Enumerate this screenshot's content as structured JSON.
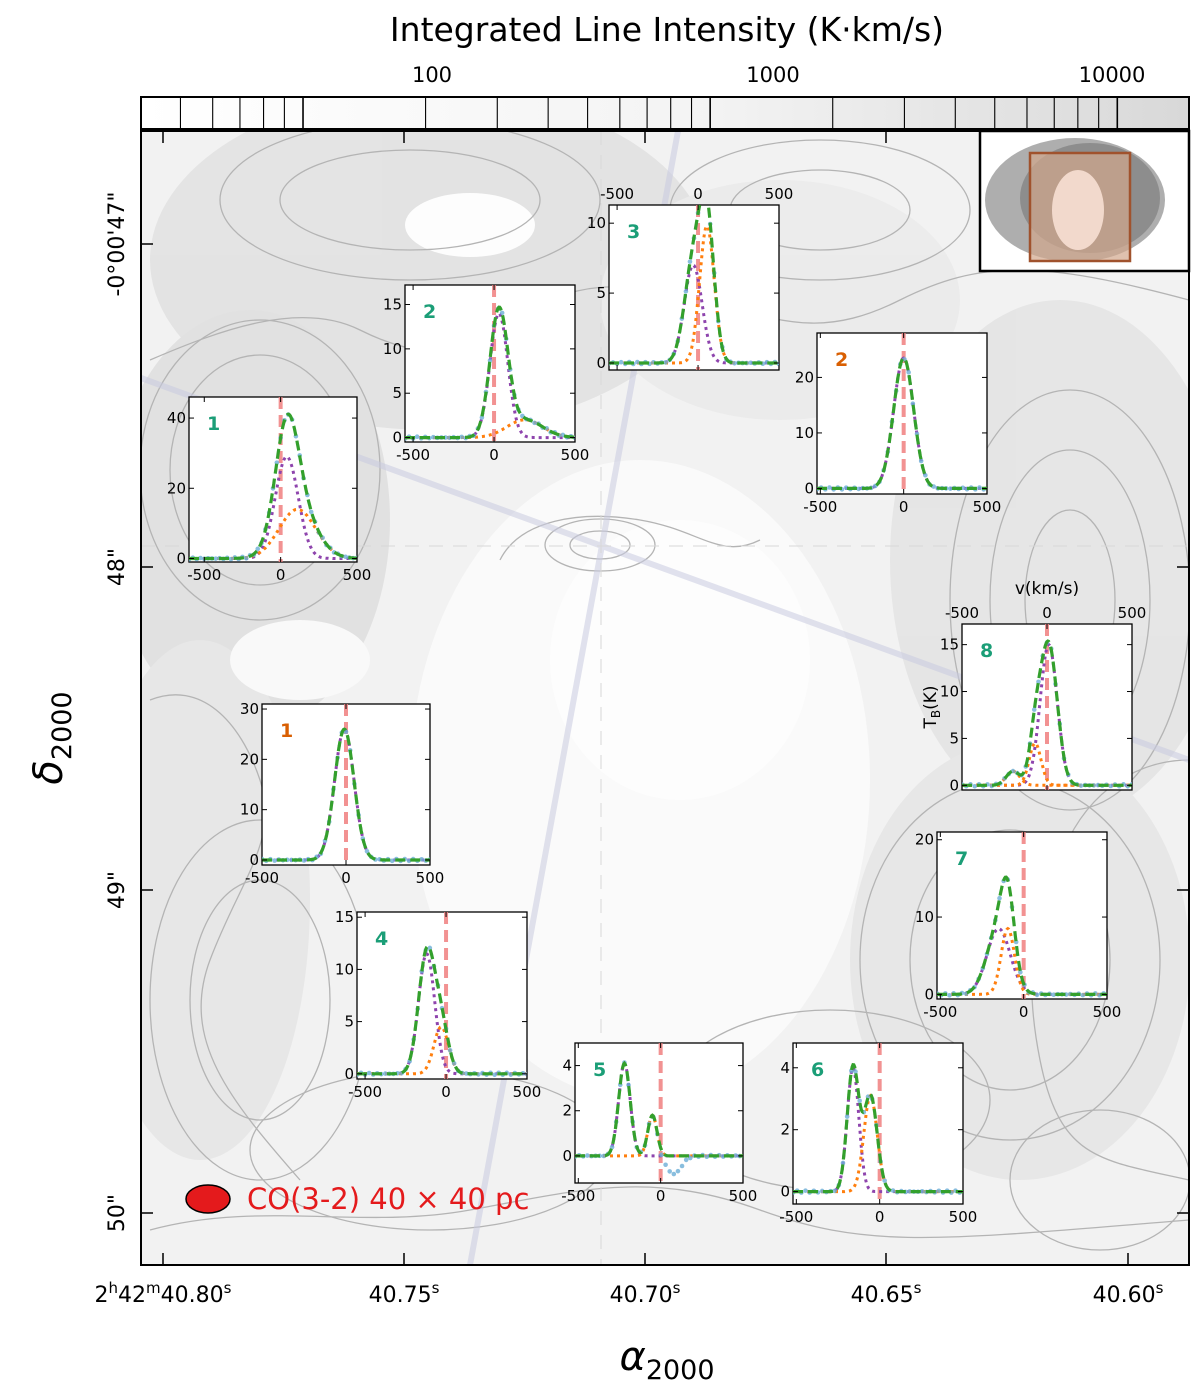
{
  "figure": {
    "colorbar": {
      "label": "Integrated Line Intensity (K·km/s)",
      "scale": "log",
      "range": [
        40,
        15000
      ],
      "tick_labels": [
        "100",
        "1000",
        "10000"
      ],
      "tick_values": [
        100,
        1000,
        10000
      ]
    },
    "map": {
      "x_axis": {
        "label_main": "α",
        "label_sub": "2000",
        "tick_labels": [
          {
            "h": "2",
            "m": "42",
            "s": "40.80",
            "unit": "s"
          },
          {
            "s": "40.75",
            "unit": "s"
          },
          {
            "s": "40.70",
            "unit": "s"
          },
          {
            "s": "40.65",
            "unit": "s"
          },
          {
            "s": "40.60",
            "unit": "s"
          }
        ]
      },
      "y_axis": {
        "label_main": "δ",
        "label_sub": "2000",
        "tick_labels": [
          "-0°00'47\"",
          "48\"",
          "49\"",
          "50\""
        ]
      },
      "beam_label": "CO(3-2) 40 × 40 pc",
      "background": "grayscale integrated intensity map with gray contours"
    },
    "colors": {
      "green_label": "#1b9e77",
      "orange_label": "#d95f02",
      "model_total": "#33a02c",
      "component_a": "#8e44ad",
      "component_b": "#ff7f0e",
      "data_points": "#6baed6",
      "systemic_line": "#f08080",
      "beam": "#e41a1c",
      "inset_box": "#a0522d"
    }
  },
  "chart_data": [
    {
      "type": "line",
      "id": "green-1",
      "label": "1",
      "label_color": "green",
      "x_ticks": [
        -500,
        0,
        500
      ],
      "y_ticks": [
        0,
        20,
        40
      ],
      "xlim": [
        -600,
        500
      ],
      "ylim": [
        -1,
        46
      ],
      "components": [
        {
          "name": "",
          "amp": 29,
          "mu": 40,
          "sigma": 75
        },
        {
          "name": "",
          "amp": 14,
          "mu": 110,
          "sigma": 120
        }
      ],
      "peak": 41.5
    },
    {
      "type": "line",
      "id": "green-2",
      "label": "2",
      "label_color": "green",
      "x_ticks": [
        -500,
        0,
        500
      ],
      "y_ticks": [
        0,
        5,
        10,
        15
      ],
      "xlim": [
        -550,
        500
      ],
      "ylim": [
        -0.5,
        17.2
      ],
      "components": [
        {
          "name": "",
          "amp": 14,
          "mu": 30,
          "sigma": 55
        },
        {
          "name": "",
          "amp": 2,
          "mu": 190,
          "sigma": 110
        }
      ],
      "peak": 16
    },
    {
      "type": "line",
      "id": "green-3",
      "label": "3",
      "label_color": "green",
      "x_ticks": [
        -500,
        0,
        500
      ],
      "y_ticks": [
        0,
        5,
        10
      ],
      "xlim": [
        -550,
        500
      ],
      "ylim": [
        -0.5,
        11.3
      ],
      "x_ticks_position": "top",
      "components": [
        {
          "name": "",
          "amp": 7,
          "mu": -30,
          "sigma": 55
        },
        {
          "name": "",
          "amp": 9.8,
          "mu": 55,
          "sigma": 45
        }
      ],
      "peak": 10.3
    },
    {
      "type": "line",
      "id": "orange-2",
      "label": "2",
      "label_color": "orange",
      "x_ticks": [
        -500,
        0,
        500
      ],
      "y_ticks": [
        0,
        10,
        20
      ],
      "xlim": [
        -520,
        500
      ],
      "ylim": [
        -1,
        28
      ],
      "components": [
        {
          "name": "",
          "amp": 23.5,
          "mu": 0,
          "sigma": 60
        }
      ],
      "peak": 25
    },
    {
      "type": "line",
      "id": "orange-1",
      "label": "1",
      "label_color": "orange",
      "x_ticks": [
        -500,
        0,
        500
      ],
      "y_ticks": [
        0,
        10,
        20,
        30
      ],
      "xlim": [
        -500,
        500
      ],
      "ylim": [
        -1,
        31
      ],
      "components": [
        {
          "name": "",
          "amp": 26,
          "mu": -10,
          "sigma": 58
        }
      ],
      "peak": 27
    },
    {
      "type": "line",
      "id": "green-8",
      "label": "8",
      "label_color": "green",
      "x_ticks": [
        -500,
        0,
        500
      ],
      "y_ticks": [
        0,
        5,
        10,
        15
      ],
      "xlim": [
        -500,
        500
      ],
      "ylim": [
        -0.5,
        17.2
      ],
      "x_ticks_position": "top",
      "xlabel": "v(km/s)",
      "ylabel": "T_B(K)",
      "components": [
        {
          "name": "",
          "amp": 15,
          "mu": 10,
          "sigma": 50
        },
        {
          "name": "",
          "amp": 4.5,
          "mu": -70,
          "sigma": 35
        },
        {
          "name": "",
          "amp": 1.5,
          "mu": -200,
          "sigma": 40
        }
      ],
      "peak": 16
    },
    {
      "type": "line",
      "id": "green-7",
      "label": "7",
      "label_color": "green",
      "x_ticks": [
        -500,
        0,
        500
      ],
      "y_ticks": [
        0,
        10,
        20
      ],
      "xlim": [
        -520,
        500
      ],
      "ylim": [
        -0.6,
        21
      ],
      "components": [
        {
          "name": "",
          "amp": 8.5,
          "mu": -150,
          "sigma": 70
        },
        {
          "name": "",
          "amp": 8.5,
          "mu": -95,
          "sigma": 40
        }
      ],
      "peak": 17.5
    },
    {
      "type": "line",
      "id": "green-4",
      "label": "4",
      "label_color": "green",
      "x_ticks": [
        -500,
        0,
        500
      ],
      "y_ticks": [
        0,
        5,
        10,
        15
      ],
      "xlim": [
        -550,
        500
      ],
      "ylim": [
        -0.5,
        15.5
      ],
      "components": [
        {
          "name": "",
          "amp": 11.5,
          "mu": -120,
          "sigma": 50
        },
        {
          "name": "",
          "amp": 4.5,
          "mu": -30,
          "sigma": 45
        }
      ],
      "peak": 13
    },
    {
      "type": "line",
      "id": "green-5",
      "label": "5",
      "label_color": "green",
      "x_ticks": [
        -500,
        0,
        500
      ],
      "y_ticks": [
        0,
        2,
        4
      ],
      "xlim": [
        -520,
        500
      ],
      "ylim": [
        -1.2,
        5
      ],
      "components": [
        {
          "name": "",
          "amp": 4.1,
          "mu": -220,
          "sigma": 35
        },
        {
          "name": "",
          "amp": 1.8,
          "mu": -50,
          "sigma": 28
        }
      ],
      "dip": {
        "mu": 80,
        "amp": -0.8,
        "sigma": 45
      },
      "peak": 4.2
    },
    {
      "type": "line",
      "id": "green-6",
      "label": "6",
      "label_color": "green",
      "x_ticks": [
        -500,
        0,
        500
      ],
      "y_ticks": [
        0,
        2,
        4
      ],
      "xlim": [
        -520,
        500
      ],
      "ylim": [
        -0.4,
        4.8
      ],
      "components": [
        {
          "name": "",
          "amp": 4.0,
          "mu": -160,
          "sigma": 35
        },
        {
          "name": "",
          "amp": 3.1,
          "mu": -55,
          "sigma": 40
        }
      ],
      "peak": 4.2
    }
  ]
}
